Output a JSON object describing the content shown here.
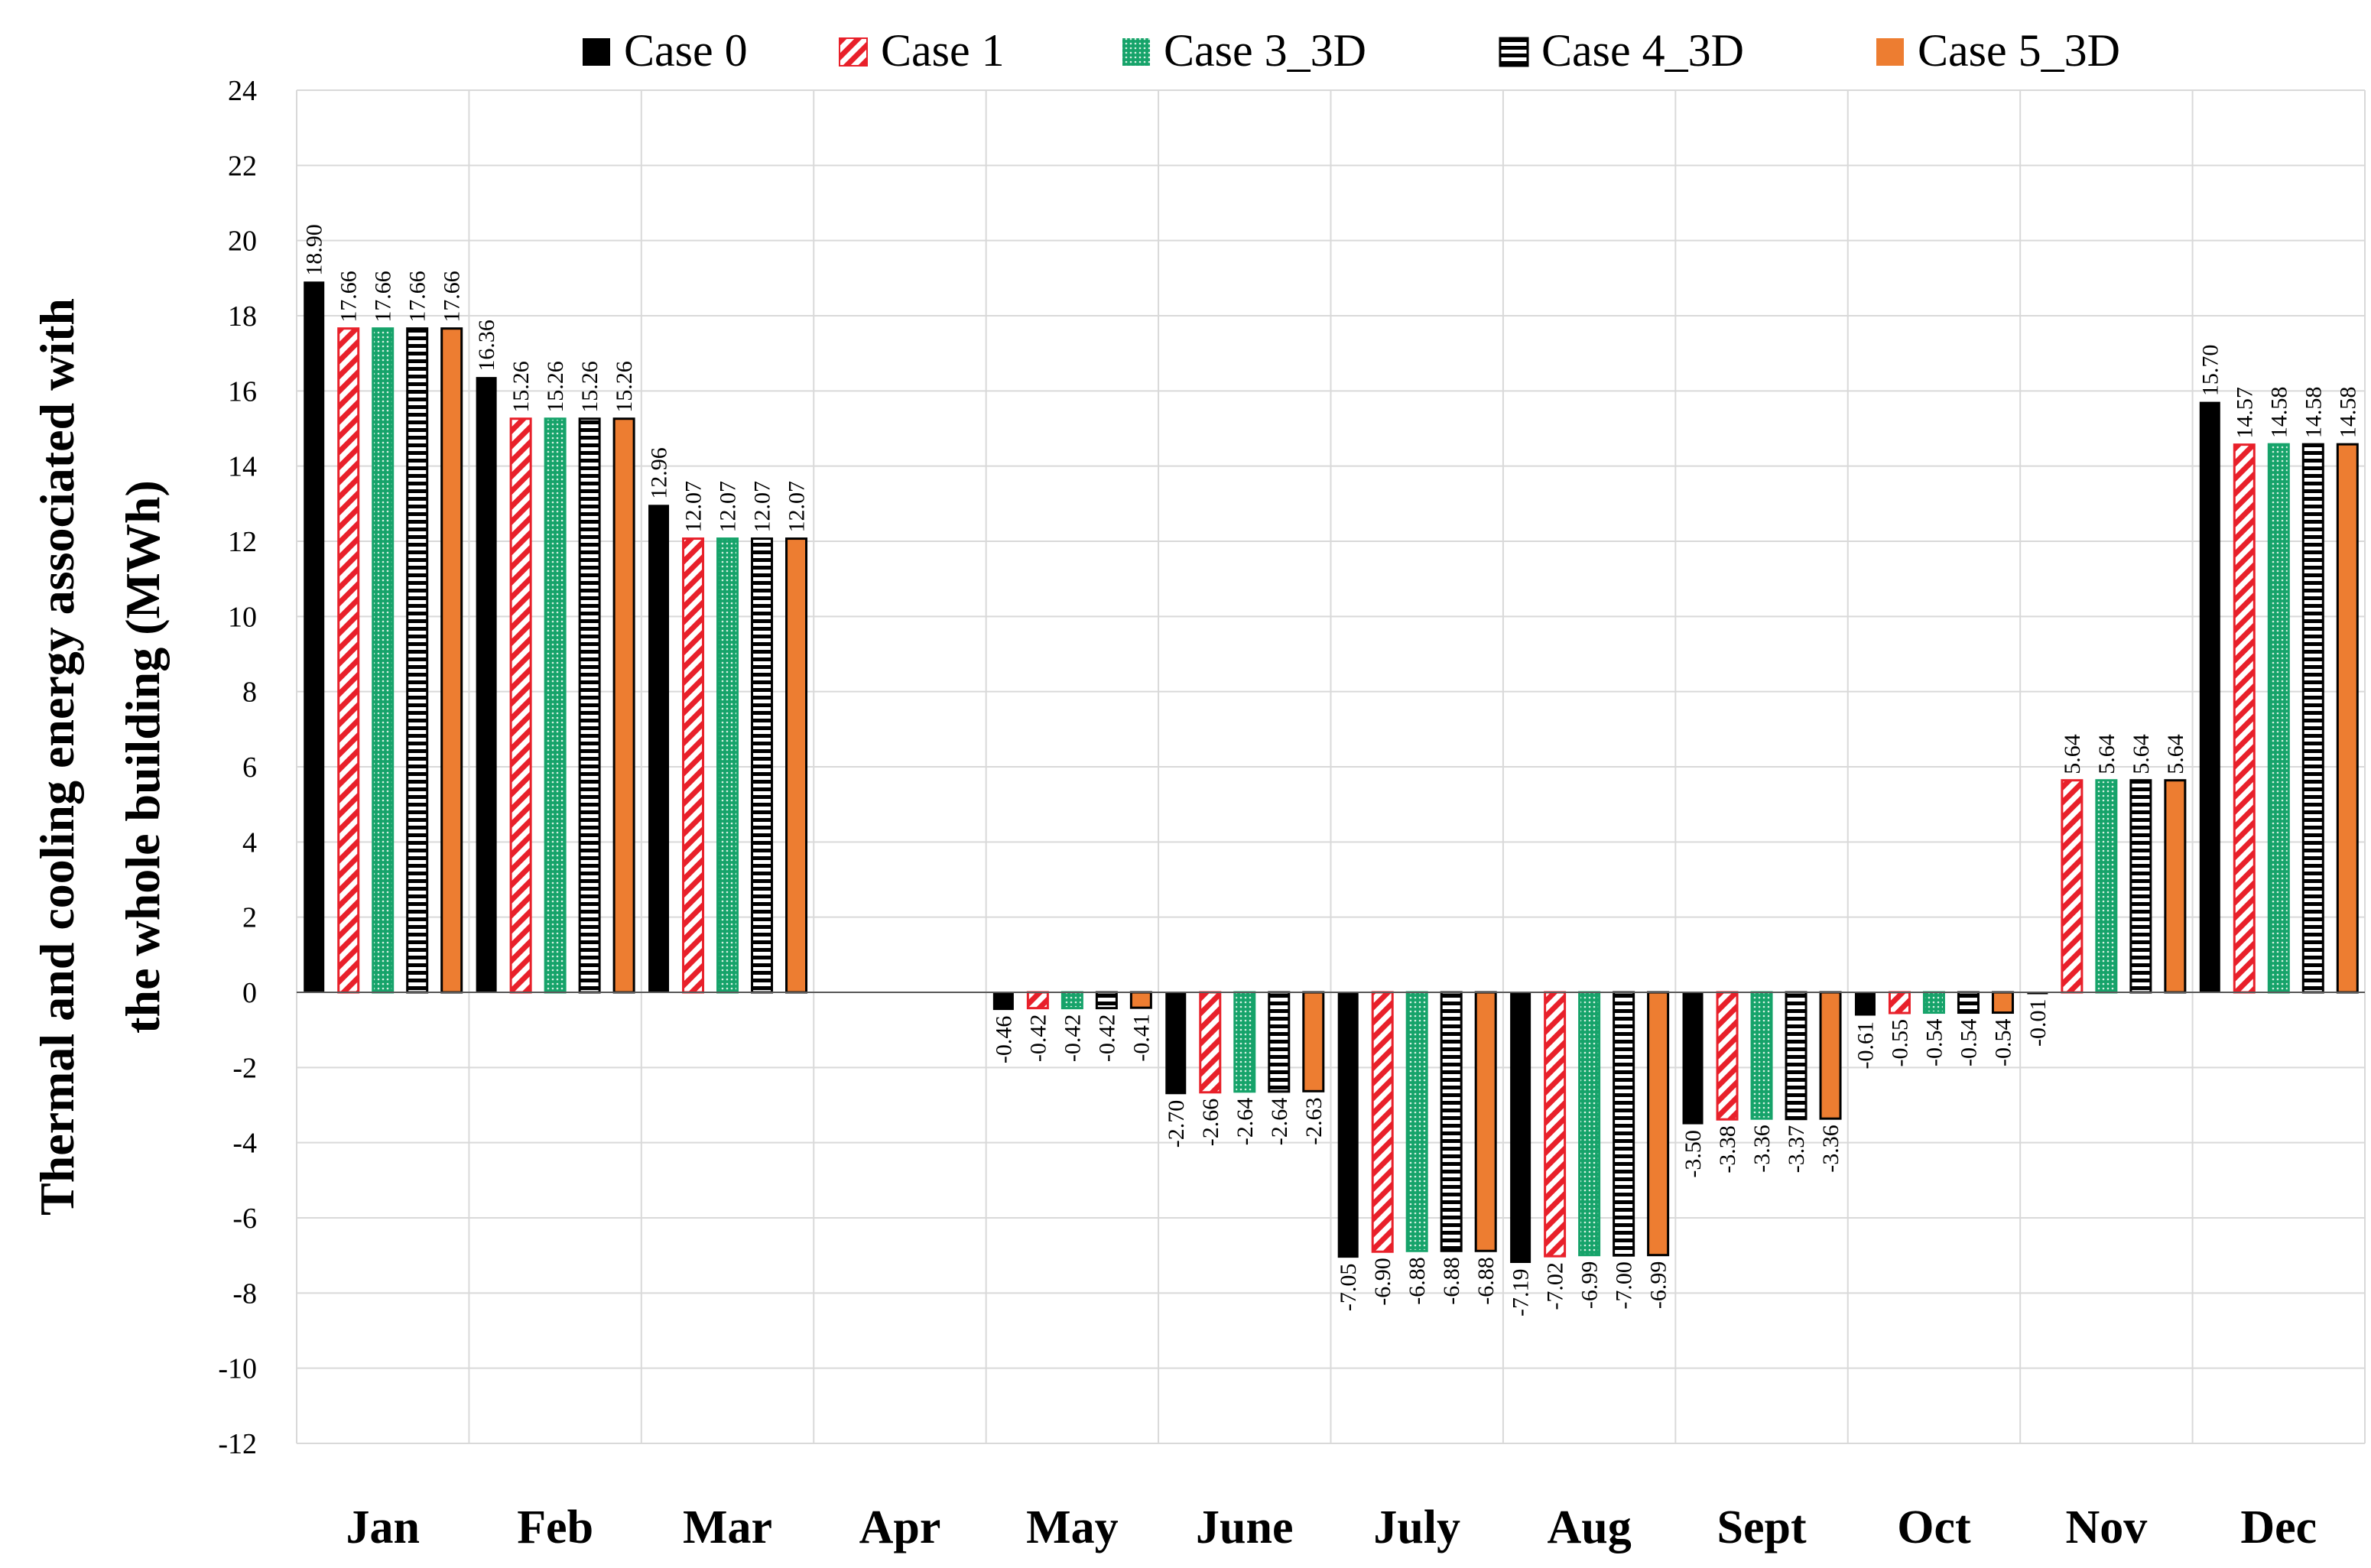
{
  "chart_data": {
    "type": "bar",
    "title": "",
    "xlabel": "",
    "ylabel": [
      "Thermal and cooling energy associated with",
      "the whole building (MWh)"
    ],
    "ylim": [
      -12,
      24
    ],
    "ytick_step": 2,
    "grid": true,
    "legend_position": "top",
    "categories": [
      "Jan",
      "Feb",
      "Mar",
      "Apr",
      "May",
      "June",
      "July",
      "Aug",
      "Sept",
      "Oct",
      "Nov",
      "Dec"
    ],
    "series": [
      {
        "name": "Case 0",
        "pattern": "solid-black",
        "values": [
          18.9,
          16.36,
          12.96,
          null,
          -0.46,
          -2.7,
          -7.05,
          -7.19,
          -3.5,
          -0.61,
          -0.01,
          15.7
        ],
        "labels": [
          "18.90",
          "16.36",
          "12.96",
          "",
          "-0.46",
          "-2.70",
          "-7.05",
          "-7.19",
          "-3.50",
          "-0.61",
          "-0.01",
          "15.70"
        ]
      },
      {
        "name": "Case 1",
        "pattern": "red-diagonal",
        "values": [
          17.66,
          15.26,
          12.07,
          null,
          -0.42,
          -2.66,
          -6.9,
          -7.02,
          -3.38,
          -0.55,
          5.64,
          14.57
        ],
        "labels": [
          "17.66",
          "15.26",
          "12.07",
          "",
          "-0.42",
          "-2.66",
          "-6.90",
          "-7.02",
          "-3.38",
          "-0.55",
          "5.64",
          "14.57"
        ]
      },
      {
        "name": "Case 3_3D",
        "pattern": "green-dotted",
        "values": [
          17.66,
          15.26,
          12.07,
          null,
          -0.42,
          -2.64,
          -6.88,
          -6.99,
          -3.36,
          -0.54,
          5.64,
          14.58
        ],
        "labels": [
          "17.66",
          "15.26",
          "12.07",
          "",
          "-0.42",
          "-2.64",
          "-6.88",
          "-6.99",
          "-3.36",
          "-0.54",
          "5.64",
          "14.58"
        ]
      },
      {
        "name": "Case 4_3D",
        "pattern": "black-horizontal-stripes",
        "values": [
          17.66,
          15.26,
          12.07,
          null,
          -0.42,
          -2.64,
          -6.88,
          -7.0,
          -3.37,
          -0.54,
          5.64,
          14.58
        ],
        "labels": [
          "17.66",
          "15.26",
          "12.07",
          "",
          "-0.42",
          "-2.64",
          "-6.88",
          "-7.00",
          "-3.37",
          "-0.54",
          "5.64",
          "14.58"
        ]
      },
      {
        "name": "Case 5_3D",
        "pattern": "orange-solid",
        "values": [
          17.66,
          15.26,
          12.07,
          null,
          -0.41,
          -2.63,
          -6.88,
          -6.99,
          -3.36,
          -0.54,
          5.64,
          14.58
        ],
        "labels": [
          "17.66",
          "15.26",
          "12.07",
          "",
          "-0.41",
          "-2.63",
          "-6.88",
          "-6.99",
          "-3.36",
          "-0.54",
          "5.64",
          "14.58"
        ]
      }
    ],
    "colors": {
      "case0": "#000000",
      "case1_stripe": "#e8202a",
      "case3_fill": "#16a36a",
      "case3_dot": "#d8f2e4",
      "case4_stripe": "#000000",
      "case5_fill": "#ed7d31",
      "grid": "#d9d9d9"
    }
  }
}
